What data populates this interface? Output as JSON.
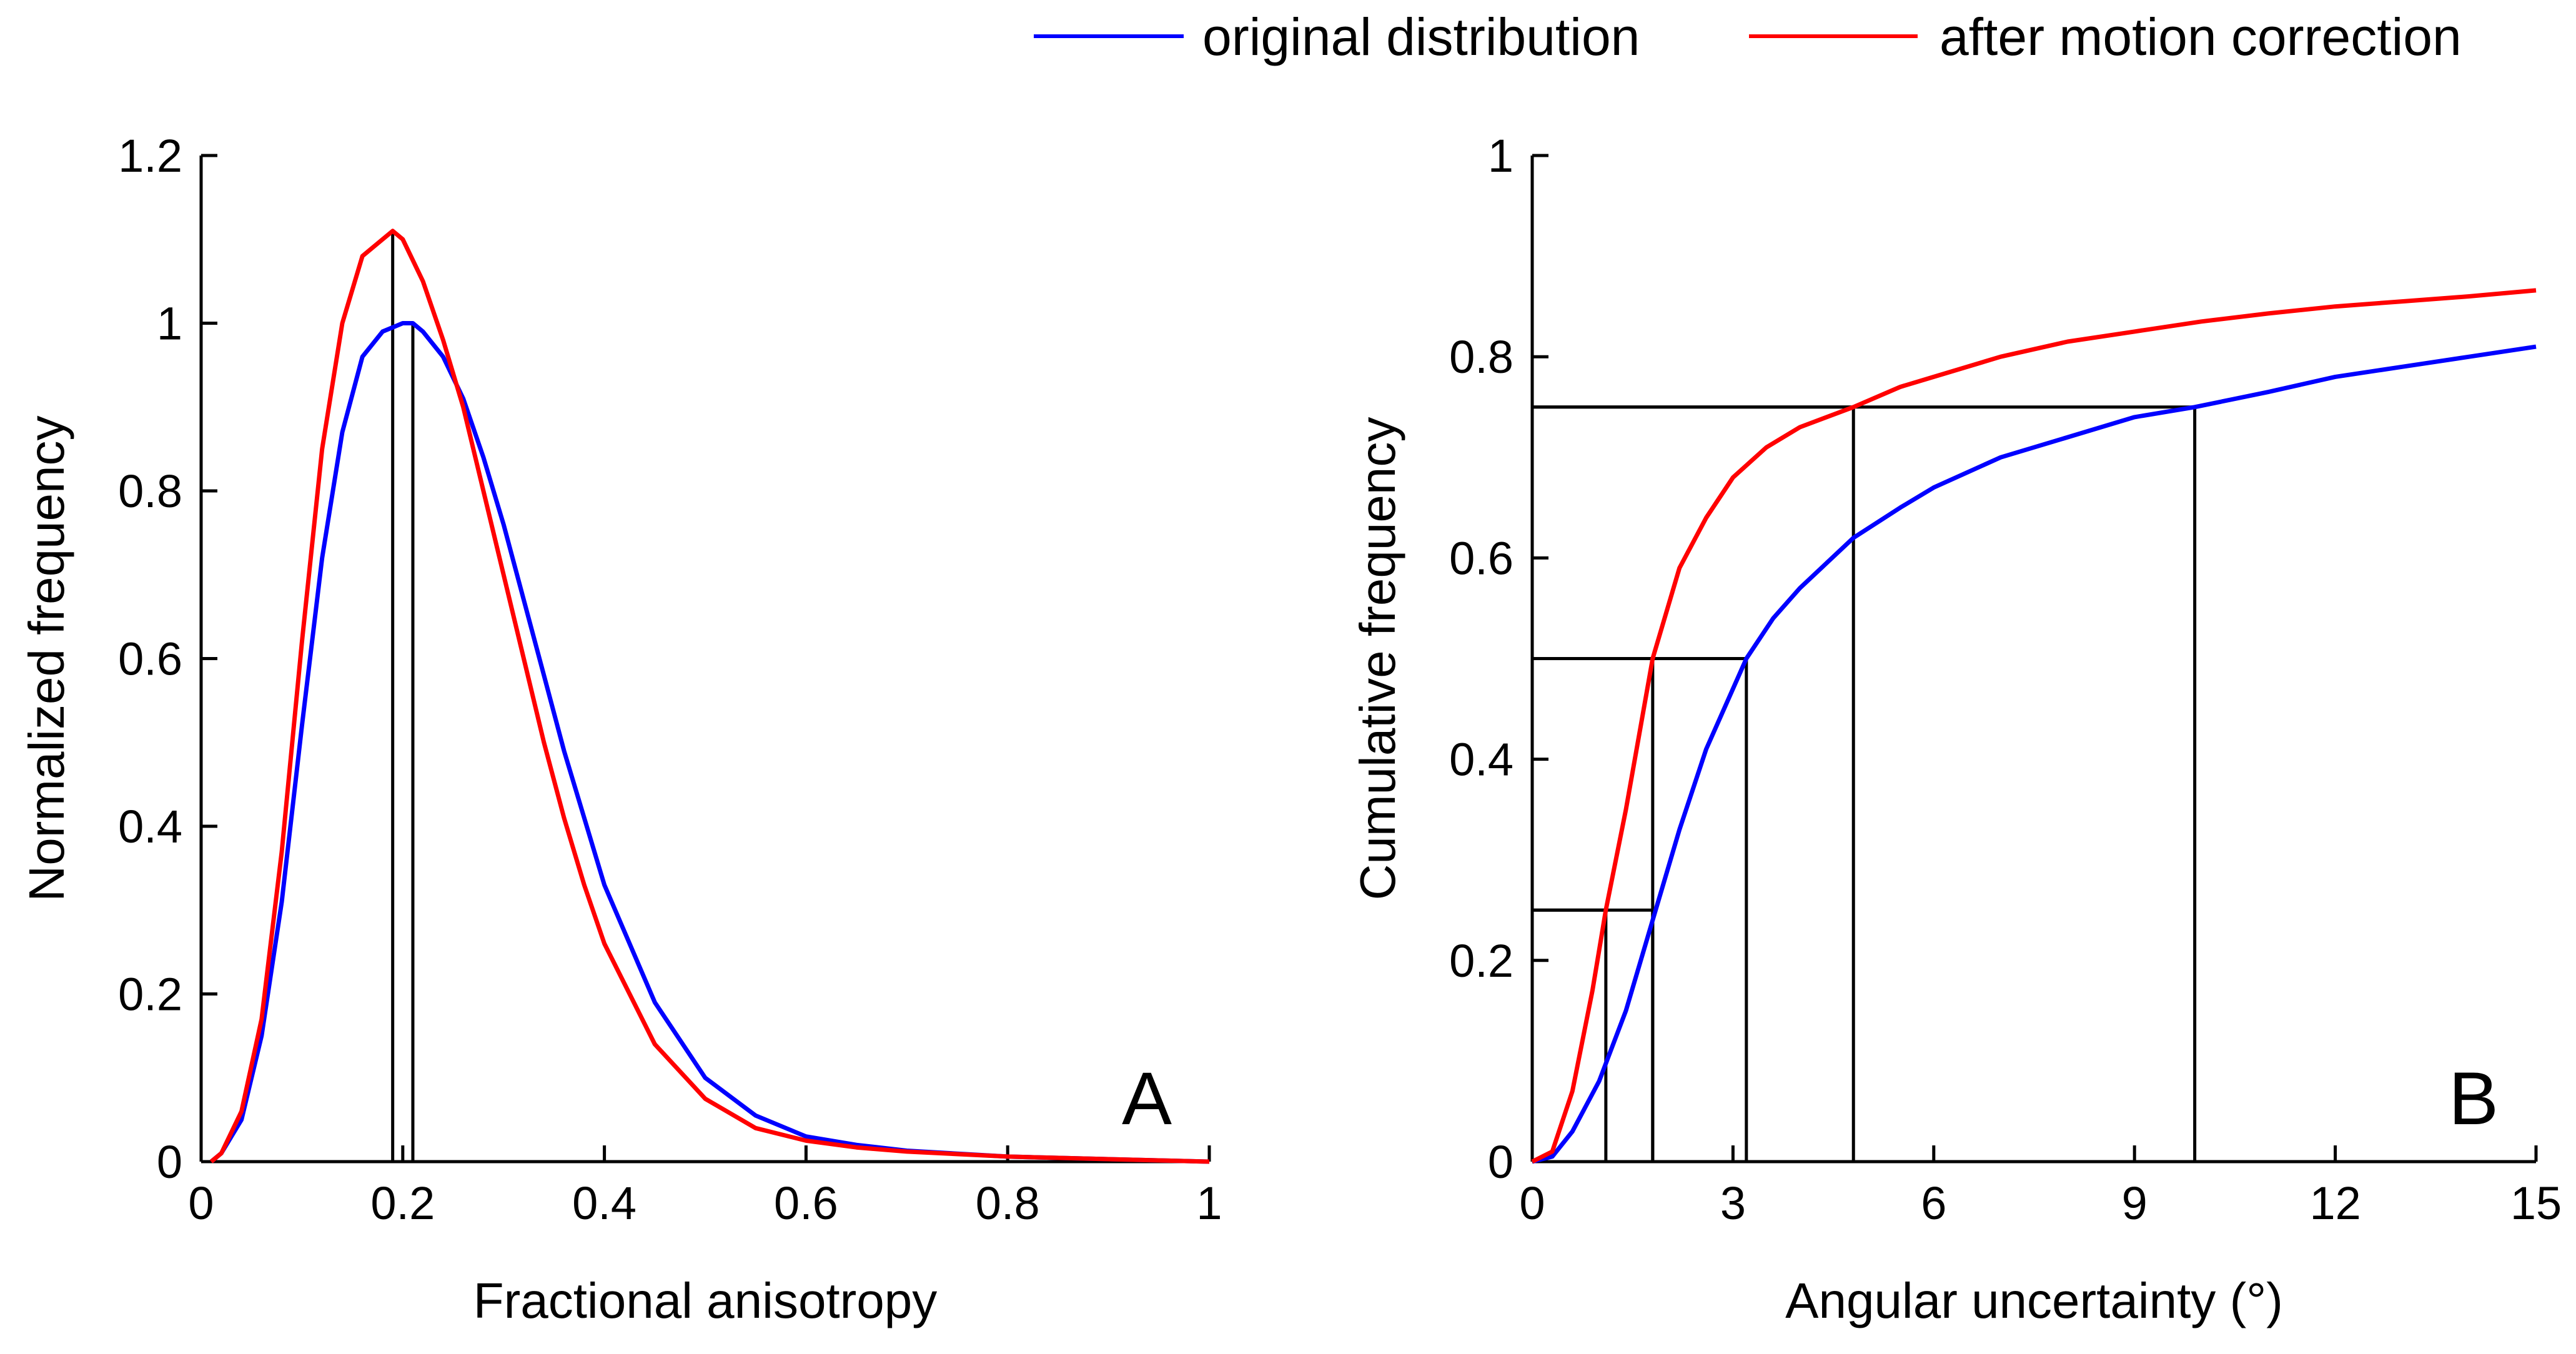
{
  "legend": {
    "entries": [
      {
        "label": "original distribution",
        "color": "#0000ff"
      },
      {
        "label": "after motion correction",
        "color": "#ff0000"
      }
    ]
  },
  "chart_data": [
    {
      "type": "line",
      "panel": "A",
      "xlabel": "Fractional anisotropy",
      "ylabel": "Normalized frequency",
      "xlim": [
        0,
        1
      ],
      "ylim": [
        0,
        1.2
      ],
      "xticks": [
        0,
        0.2,
        0.4,
        0.6,
        0.8,
        1
      ],
      "xtick_labels": [
        "0",
        "0.2",
        "0.4",
        "0.6",
        "0.8",
        "1"
      ],
      "yticks": [
        0,
        0.2,
        0.4,
        0.6,
        0.8,
        1,
        1.2
      ],
      "ytick_labels": [
        "0",
        "0.2",
        "0.4",
        "0.6",
        "0.8",
        "1",
        "1.2"
      ],
      "series": [
        {
          "name": "original distribution",
          "color": "#0000ff",
          "x": [
            0.01,
            0.02,
            0.04,
            0.06,
            0.08,
            0.1,
            0.12,
            0.14,
            0.16,
            0.18,
            0.2,
            0.21,
            0.22,
            0.24,
            0.26,
            0.28,
            0.3,
            0.32,
            0.34,
            0.36,
            0.38,
            0.4,
            0.45,
            0.5,
            0.55,
            0.6,
            0.65,
            0.7,
            0.8,
            0.9,
            1.0
          ],
          "y": [
            0.0,
            0.01,
            0.05,
            0.15,
            0.31,
            0.52,
            0.72,
            0.87,
            0.96,
            0.99,
            1.0,
            1.0,
            0.99,
            0.96,
            0.91,
            0.84,
            0.76,
            0.67,
            0.58,
            0.49,
            0.41,
            0.33,
            0.19,
            0.1,
            0.055,
            0.03,
            0.02,
            0.013,
            0.006,
            0.003,
            0.0
          ]
        },
        {
          "name": "after motion correction",
          "color": "#ff0000",
          "x": [
            0.01,
            0.02,
            0.04,
            0.06,
            0.08,
            0.1,
            0.12,
            0.14,
            0.16,
            0.18,
            0.19,
            0.2,
            0.22,
            0.24,
            0.26,
            0.28,
            0.3,
            0.32,
            0.34,
            0.36,
            0.38,
            0.4,
            0.45,
            0.5,
            0.55,
            0.6,
            0.65,
            0.7,
            0.8,
            0.9,
            1.0
          ],
          "y": [
            0.0,
            0.01,
            0.06,
            0.17,
            0.37,
            0.62,
            0.85,
            1.0,
            1.08,
            1.1,
            1.11,
            1.1,
            1.05,
            0.98,
            0.9,
            0.8,
            0.7,
            0.6,
            0.5,
            0.41,
            0.33,
            0.26,
            0.14,
            0.075,
            0.04,
            0.025,
            0.017,
            0.012,
            0.006,
            0.003,
            0.0
          ]
        }
      ],
      "reference_lines": [
        {
          "x": 0.19,
          "y": 1.11
        },
        {
          "x": 0.21,
          "y": 1.0
        }
      ],
      "annotation": "A"
    },
    {
      "type": "line",
      "panel": "B",
      "xlabel": "Angular uncertainty (°)",
      "ylabel": "Cumulative frequency",
      "xlim": [
        0,
        15
      ],
      "ylim": [
        0,
        1
      ],
      "xticks": [
        0,
        3,
        6,
        9,
        12,
        15
      ],
      "xtick_labels": [
        "0",
        "3",
        "6",
        "9",
        "12",
        "15"
      ],
      "yticks": [
        0,
        0.2,
        0.4,
        0.6,
        0.8,
        1
      ],
      "ytick_labels": [
        "0",
        "0.2",
        "0.4",
        "0.6",
        "0.8",
        "1"
      ],
      "series": [
        {
          "name": "original distribution",
          "color": "#0000ff",
          "x": [
            0,
            0.3,
            0.6,
            1.0,
            1.4,
            1.8,
            2.2,
            2.6,
            3.0,
            3.2,
            3.6,
            4.0,
            4.8,
            5.5,
            6.0,
            7.0,
            8.0,
            9.0,
            9.9,
            11.0,
            12.0,
            13.0,
            14.0,
            15.0
          ],
          "y": [
            0,
            0.005,
            0.03,
            0.08,
            0.15,
            0.24,
            0.33,
            0.41,
            0.47,
            0.5,
            0.54,
            0.57,
            0.62,
            0.65,
            0.67,
            0.7,
            0.72,
            0.74,
            0.75,
            0.765,
            0.78,
            0.79,
            0.8,
            0.81
          ]
        },
        {
          "name": "after motion correction",
          "color": "#ff0000",
          "x": [
            0,
            0.3,
            0.6,
            0.9,
            1.1,
            1.4,
            1.8,
            2.2,
            2.6,
            3.0,
            3.5,
            4.0,
            4.8,
            5.5,
            6.0,
            7.0,
            8.0,
            9.0,
            10.0,
            11.0,
            12.0,
            13.0,
            14.0,
            15.0
          ],
          "y": [
            0,
            0.01,
            0.07,
            0.17,
            0.25,
            0.35,
            0.5,
            0.59,
            0.64,
            0.68,
            0.71,
            0.73,
            0.75,
            0.77,
            0.78,
            0.8,
            0.815,
            0.825,
            0.835,
            0.843,
            0.85,
            0.855,
            0.86,
            0.866
          ]
        }
      ],
      "reference_lines": [
        {
          "x": 1.1,
          "y": 0.25
        },
        {
          "x": 1.8,
          "y": 0.25
        },
        {
          "x": 1.8,
          "y": 0.5
        },
        {
          "x": 3.2,
          "y": 0.5
        },
        {
          "x": 4.8,
          "y": 0.75
        },
        {
          "x": 9.9,
          "y": 0.75
        }
      ],
      "annotation": "B"
    }
  ]
}
